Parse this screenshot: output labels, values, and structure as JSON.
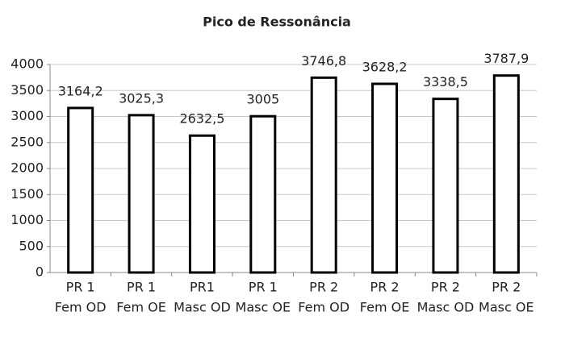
{
  "chart_data": {
    "type": "bar",
    "title": "Pico de Ressonância",
    "categories": [
      [
        "PR 1",
        "Fem OD"
      ],
      [
        "PR 1",
        "Fem OE"
      ],
      [
        "PR1",
        "Masc OD"
      ],
      [
        "PR 1",
        "Masc OE"
      ],
      [
        "PR 2",
        "Fem OD"
      ],
      [
        "PR 2",
        "Fem OE"
      ],
      [
        "PR 2",
        "Masc OD"
      ],
      [
        "PR 2",
        "Masc OE"
      ]
    ],
    "values": [
      3164.2,
      3025.3,
      2632.5,
      3005,
      3746.8,
      3628.2,
      3338.5,
      3787.9
    ],
    "value_labels": [
      "3164,2",
      "3025,3",
      "2632,5",
      "3005",
      "3746,8",
      "3628,2",
      "3338,5",
      "3787,9"
    ],
    "color": "#ffffff",
    "ylim": [
      0,
      4000
    ],
    "yticks": [
      0,
      500,
      1000,
      1500,
      2000,
      2500,
      3000,
      3500,
      4000
    ],
    "grid": true
  }
}
